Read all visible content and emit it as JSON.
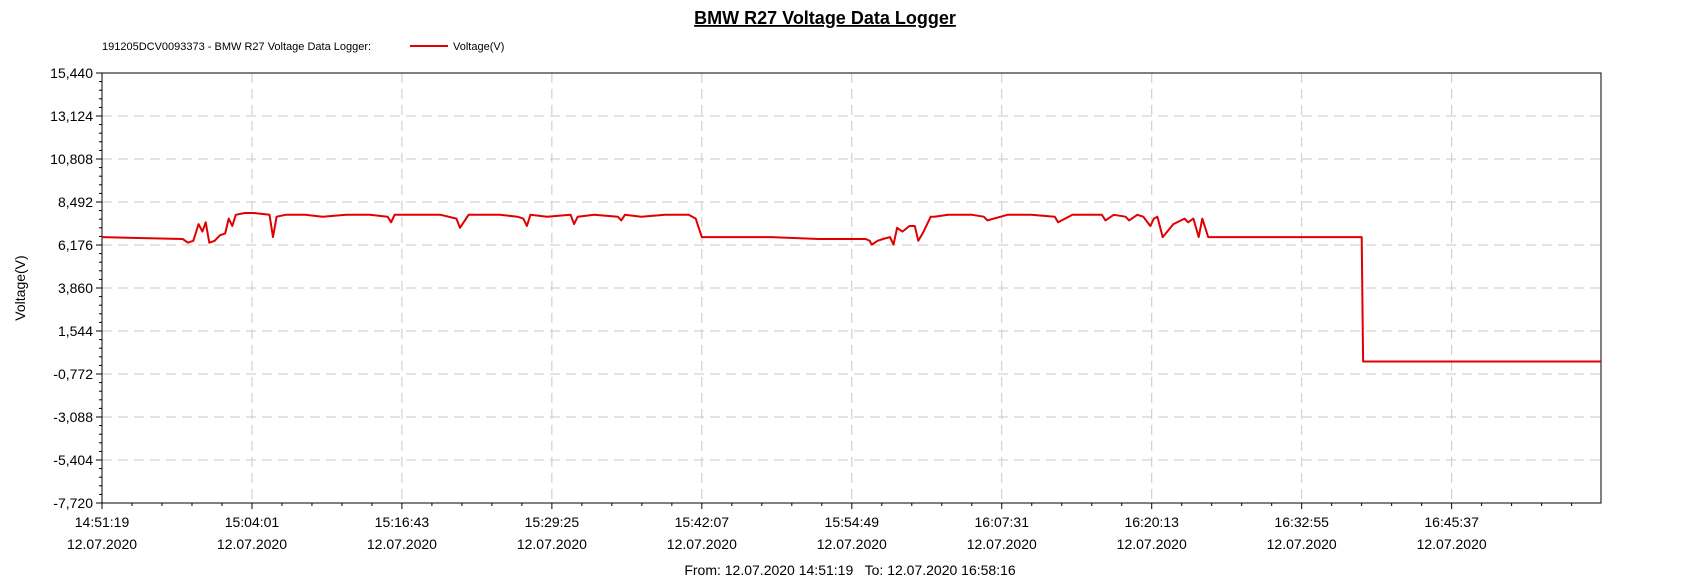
{
  "chart_data": {
    "type": "line",
    "title": "BMW R27 Voltage Data Logger",
    "legend": {
      "prefix": "191205DCV0093373 - BMW R27 Voltage Data Logger:",
      "placement": "top-left"
    },
    "ylabel": "Voltage(V)",
    "ylim": [
      -7.72,
      15.44
    ],
    "y_ticks": [
      "15,440",
      "13,124",
      "10,808",
      "8,492",
      "6,176",
      "3,860",
      "1,544",
      "-0,772",
      "-3,088",
      "-5,404",
      "-7,720"
    ],
    "x_ticks": [
      {
        "time": "14:51:19",
        "date": "12.07.2020"
      },
      {
        "time": "15:04:01",
        "date": "12.07.2020"
      },
      {
        "time": "15:16:43",
        "date": "12.07.2020"
      },
      {
        "time": "15:29:25",
        "date": "12.07.2020"
      },
      {
        "time": "15:42:07",
        "date": "12.07.2020"
      },
      {
        "time": "15:54:49",
        "date": "12.07.2020"
      },
      {
        "time": "16:07:31",
        "date": "12.07.2020"
      },
      {
        "time": "16:20:13",
        "date": "12.07.2020"
      },
      {
        "time": "16:32:55",
        "date": "12.07.2020"
      },
      {
        "time": "16:45:37",
        "date": "12.07.2020"
      }
    ],
    "xlim": [
      "14:51:19",
      "16:58:16"
    ],
    "range_label": "From: 12.07.2020 14:51:19   To: 12.07.2020 16:58:16",
    "grid": true,
    "series": [
      {
        "name": "Voltage(V)",
        "color": "#e00000",
        "x": [
          "14:51:19",
          "14:58:09",
          "14:58:36",
          "14:59:03",
          "14:59:30",
          "14:59:49",
          "15:00:06",
          "15:00:24",
          "15:00:51",
          "15:01:18",
          "15:01:45",
          "15:02:03",
          "15:02:21",
          "15:02:39",
          "15:03:24",
          "15:04:10",
          "15:05:30",
          "15:05:48",
          "15:06:06",
          "15:06:52",
          "15:08:30",
          "15:10:00",
          "15:12:00",
          "15:14:00",
          "15:15:30",
          "15:15:48",
          "15:16:06",
          "15:18:00",
          "15:20:00",
          "15:21:20",
          "15:21:38",
          "15:22:22",
          "15:25:00",
          "15:26:30",
          "15:27:00",
          "15:27:18",
          "15:27:36",
          "15:29:00",
          "15:31:00",
          "15:31:18",
          "15:31:36",
          "15:33:00",
          "15:35:00",
          "15:35:18",
          "15:35:36",
          "15:37:00",
          "15:39:00",
          "15:41:00",
          "15:41:36",
          "15:42:07",
          "15:44:00",
          "15:48:00",
          "15:52:00",
          "15:54:00",
          "15:56:00",
          "15:56:20",
          "15:56:30",
          "15:57:00",
          "15:57:27",
          "15:58:03",
          "15:58:21",
          "15:58:39",
          "15:59:06",
          "15:59:42",
          "16:00:09",
          "16:00:27",
          "16:00:54",
          "16:01:30",
          "16:01:48",
          "16:03:00",
          "16:05:00",
          "16:06:00",
          "16:06:18",
          "16:08:00",
          "16:10:00",
          "16:12:00",
          "16:12:18",
          "16:13:30",
          "16:15:00",
          "16:16:00",
          "16:16:18",
          "16:17:00",
          "16:18:00",
          "16:18:18",
          "16:19:00",
          "16:19:30",
          "16:20:06",
          "16:20:24",
          "16:20:42",
          "16:21:09",
          "16:22:03",
          "16:23:00",
          "16:23:18",
          "16:23:45",
          "16:24:12",
          "16:24:30",
          "16:25:00",
          "16:28:00",
          "16:32:00",
          "16:36:00",
          "16:38:00",
          "16:38:07",
          "16:50:00",
          "16:58:16"
        ],
        "values": [
          6.6,
          6.5,
          6.3,
          6.4,
          7.3,
          6.9,
          7.4,
          6.3,
          6.4,
          6.7,
          6.8,
          7.6,
          7.2,
          7.8,
          7.9,
          7.9,
          7.8,
          6.6,
          7.7,
          7.8,
          7.8,
          7.7,
          7.8,
          7.8,
          7.7,
          7.4,
          7.8,
          7.8,
          7.8,
          7.6,
          7.1,
          7.8,
          7.8,
          7.7,
          7.6,
          7.2,
          7.8,
          7.7,
          7.8,
          7.3,
          7.7,
          7.8,
          7.7,
          7.5,
          7.8,
          7.7,
          7.8,
          7.8,
          7.6,
          6.6,
          6.6,
          6.6,
          6.5,
          6.5,
          6.5,
          6.4,
          6.2,
          6.4,
          6.5,
          6.6,
          6.2,
          7.1,
          6.9,
          7.2,
          7.2,
          6.4,
          6.9,
          7.7,
          7.7,
          7.8,
          7.8,
          7.7,
          7.5,
          7.8,
          7.8,
          7.7,
          7.4,
          7.8,
          7.8,
          7.8,
          7.5,
          7.8,
          7.7,
          7.5,
          7.8,
          7.7,
          7.2,
          7.6,
          7.7,
          6.6,
          7.3,
          7.6,
          7.4,
          7.6,
          6.6,
          7.6,
          6.6,
          6.6,
          6.6,
          6.6,
          6.6,
          -0.1,
          -0.1,
          -0.1
        ]
      }
    ]
  }
}
